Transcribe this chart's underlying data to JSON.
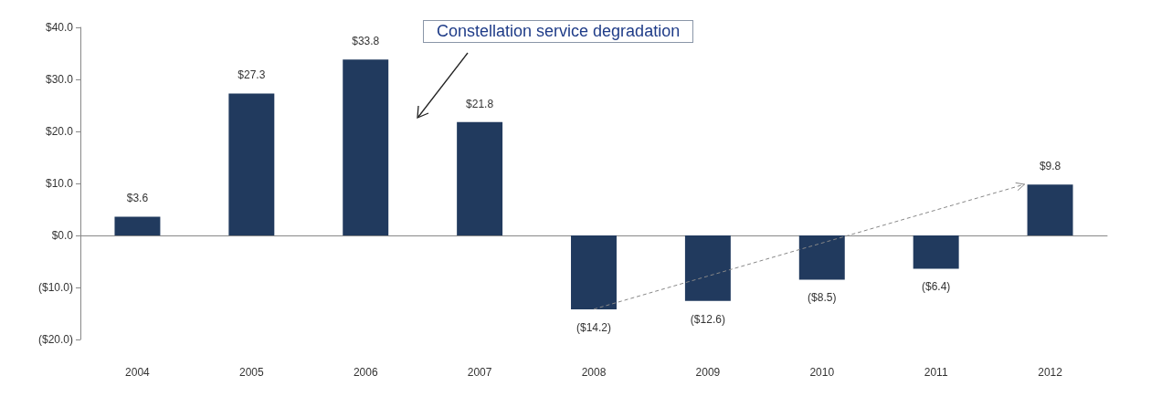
{
  "chart_data": {
    "type": "bar",
    "categories": [
      "2004",
      "2005",
      "2006",
      "2007",
      "2008",
      "2009",
      "2010",
      "2011",
      "2012"
    ],
    "values": [
      3.6,
      27.3,
      33.8,
      21.8,
      -14.2,
      -12.6,
      -8.5,
      -6.4,
      9.8
    ],
    "value_labels": [
      "$3.6",
      "$27.3",
      "$33.8",
      "$21.8",
      "($14.2)",
      "($12.6)",
      "($8.5)",
      "($6.4)",
      "$9.8"
    ],
    "color": "#213a5e",
    "ylim": [
      -20,
      40
    ],
    "yticks": [
      {
        "value": -20,
        "label": "($20.0)"
      },
      {
        "value": -10,
        "label": "($10.0)"
      },
      {
        "value": 0,
        "label": "$0.0"
      },
      {
        "value": 10,
        "label": "$10.0"
      },
      {
        "value": 20,
        "label": "$20.0"
      },
      {
        "value": 30,
        "label": "$30.0"
      },
      {
        "value": 40,
        "label": "$40.0"
      }
    ],
    "annotations": [
      "Constellation service degradation"
    ]
  }
}
